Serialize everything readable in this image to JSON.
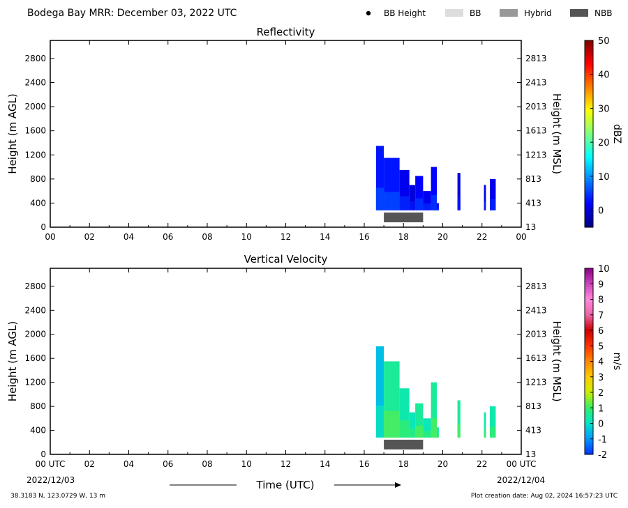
{
  "header": {
    "title": "Bodega Bay MRR:  December 03, 2022 UTC",
    "legend": [
      {
        "label": "BB Height",
        "color": "#000000",
        "shape": "dot"
      },
      {
        "label": "BB",
        "color": "#dddddd",
        "shape": "box"
      },
      {
        "label": "Hybrid",
        "color": "#999999",
        "shape": "box"
      },
      {
        "label": "NBB",
        "color": "#555555",
        "shape": "box"
      }
    ]
  },
  "footer": {
    "location": "38.3183 N, 123.0729 W, 13 m",
    "created": "Plot creation date: Aug 02, 2024 16:57:23 UTC",
    "date_left": "2022/12/03",
    "date_right": "2022/12/04",
    "xlabel": "Time (UTC)"
  },
  "chart_data": [
    {
      "type": "heatmap",
      "title": "Reflectivity",
      "ylabel": "Height (m AGL)",
      "y2label": "Height (m MSL)",
      "xlim": [
        0,
        24
      ],
      "ylim": [
        0,
        3100
      ],
      "xticks": [
        "00",
        "02",
        "04",
        "06",
        "08",
        "10",
        "12",
        "14",
        "16",
        "18",
        "20",
        "22",
        "00"
      ],
      "yticks": [
        0,
        400,
        800,
        1200,
        1600,
        2000,
        2400,
        2800
      ],
      "y2ticks": [
        "13",
        "413",
        "813",
        "1213",
        "1613",
        "2013",
        "2413",
        "2813"
      ],
      "colorbar": {
        "label": "dBZ",
        "min": -5,
        "max": 50,
        "ticks": [
          0,
          10,
          20,
          30,
          40,
          50
        ],
        "colors": [
          "#00007f",
          "#0000ff",
          "#007fff",
          "#00ffff",
          "#7fff7f",
          "#ffff00",
          "#ff7f00",
          "#ff0000",
          "#7f0000"
        ]
      },
      "bb_bar": {
        "type": "NBB",
        "start": 17.0,
        "end": 19.0,
        "color": "#555555"
      },
      "echo_columns": [
        {
          "start": 16.6,
          "end": 17.0,
          "top": 1350,
          "dbz": 3
        },
        {
          "start": 17.0,
          "end": 17.8,
          "top": 1150,
          "dbz": 3
        },
        {
          "start": 17.8,
          "end": 18.3,
          "top": 950,
          "dbz": 1
        },
        {
          "start": 18.3,
          "end": 18.6,
          "top": 700,
          "dbz": 0
        },
        {
          "start": 18.6,
          "end": 19.0,
          "top": 850,
          "dbz": 2
        },
        {
          "start": 19.0,
          "end": 19.4,
          "top": 600,
          "dbz": 1
        },
        {
          "start": 19.4,
          "end": 19.7,
          "top": 1000,
          "dbz": 2
        },
        {
          "start": 19.7,
          "end": 19.8,
          "top": 400,
          "dbz": 1
        },
        {
          "start": 20.75,
          "end": 20.9,
          "top": 900,
          "dbz": 0
        },
        {
          "start": 22.1,
          "end": 22.2,
          "top": 700,
          "dbz": 1
        },
        {
          "start": 22.4,
          "end": 22.7,
          "top": 800,
          "dbz": 1
        }
      ]
    },
    {
      "type": "heatmap",
      "title": "Vertical Velocity",
      "ylabel": "Height (m AGL)",
      "y2label": "Height (m MSL)",
      "xlim": [
        0,
        24
      ],
      "ylim": [
        0,
        3100
      ],
      "xticks": [
        "00 UTC",
        "02",
        "04",
        "06",
        "08",
        "10",
        "12",
        "14",
        "16",
        "18",
        "20",
        "22",
        "00 UTC"
      ],
      "yticks": [
        0,
        400,
        800,
        1200,
        1600,
        2000,
        2400,
        2800
      ],
      "y2ticks": [
        "13",
        "413",
        "813",
        "1213",
        "1613",
        "2013",
        "2413",
        "2813"
      ],
      "colorbar": {
        "label": "m/s",
        "min": -2,
        "max": 10,
        "ticks": [
          -2,
          -1,
          0,
          1,
          2,
          3,
          4,
          5,
          6,
          7,
          8,
          9,
          10
        ],
        "colors": [
          "#0033ff",
          "#0099ff",
          "#00e5cc",
          "#33ee66",
          "#ccee00",
          "#ffcc00",
          "#ff8800",
          "#ff3300",
          "#cc0000",
          "#ee66aa",
          "#ff88dd",
          "#cc44bb",
          "#880088"
        ]
      },
      "bb_bar": {
        "type": "NBB",
        "start": 17.0,
        "end": 19.0,
        "color": "#555555"
      },
      "echo_columns": [
        {
          "start": 16.6,
          "end": 17.0,
          "top": 1800,
          "vel": -0.5
        },
        {
          "start": 17.0,
          "end": 17.8,
          "top": 1550,
          "vel": 0.5
        },
        {
          "start": 17.8,
          "end": 18.3,
          "top": 1100,
          "vel": 0.3
        },
        {
          "start": 18.3,
          "end": 18.6,
          "top": 700,
          "vel": 0.2
        },
        {
          "start": 18.6,
          "end": 19.0,
          "top": 850,
          "vel": 0.5
        },
        {
          "start": 19.0,
          "end": 19.4,
          "top": 600,
          "vel": 0.2
        },
        {
          "start": 19.4,
          "end": 19.7,
          "top": 1200,
          "vel": 0.5
        },
        {
          "start": 19.7,
          "end": 19.8,
          "top": 450,
          "vel": 0.3
        },
        {
          "start": 20.75,
          "end": 20.9,
          "top": 900,
          "vel": 0.5
        },
        {
          "start": 22.1,
          "end": 22.2,
          "top": 700,
          "vel": 0.3
        },
        {
          "start": 22.4,
          "end": 22.7,
          "top": 800,
          "vel": 0.3
        }
      ]
    }
  ]
}
